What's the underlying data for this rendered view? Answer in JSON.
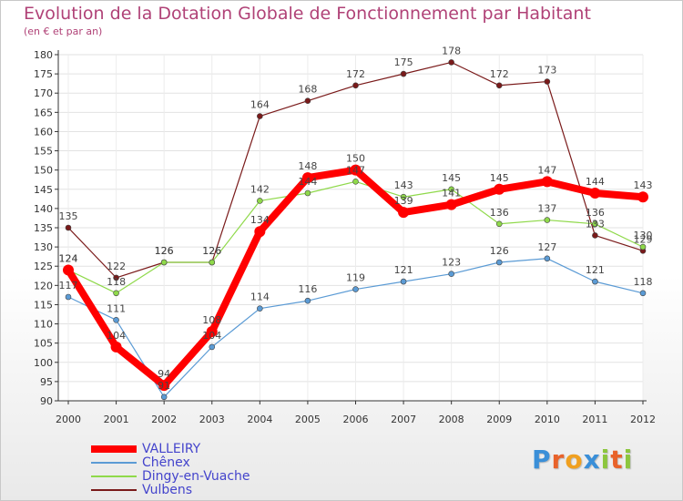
{
  "chart_data": {
    "type": "line",
    "title": "Evolution de la Dotation Globale de Fonctionnement par Habitant",
    "subtitle": "(en € et par an)",
    "x": [
      "2000",
      "2001",
      "2002",
      "2003",
      "2004",
      "2005",
      "2006",
      "2007",
      "2008",
      "2009",
      "2010",
      "2011",
      "2012"
    ],
    "ylim": [
      90,
      180
    ],
    "yticks": [
      90,
      95,
      100,
      105,
      110,
      115,
      120,
      125,
      130,
      135,
      140,
      145,
      150,
      155,
      160,
      165,
      170,
      175,
      180
    ],
    "grid": true,
    "legend_position": "bottom-left",
    "series": [
      {
        "name": "VALLEIRY",
        "color": "#ff0000",
        "values": [
          124,
          104,
          94,
          108,
          134,
          148,
          150,
          139,
          141,
          145,
          147,
          144,
          143
        ]
      },
      {
        "name": "Chênex",
        "color": "#5b9bd5",
        "values": [
          117,
          111,
          91,
          104,
          114,
          116,
          119,
          121,
          123,
          126,
          127,
          121,
          118
        ]
      },
      {
        "name": "Dingy-en-Vuache",
        "color": "#8fd94a",
        "values": [
          124,
          118,
          126,
          126,
          142,
          144,
          147,
          143,
          145,
          136,
          137,
          136,
          130
        ]
      },
      {
        "name": "Vulbens",
        "color": "#7a1a1a",
        "values": [
          135,
          122,
          126,
          126,
          164,
          168,
          172,
          175,
          178,
          172,
          173,
          133,
          129
        ]
      }
    ]
  },
  "logo": {
    "letters": [
      "P",
      "r",
      "o",
      "x",
      "i",
      "t",
      "i"
    ],
    "colors": [
      "#3a8fd8",
      "#e8622a",
      "#f0a020",
      "#3a8fd8",
      "#8cc63e",
      "#e8622a",
      "#8cc63e"
    ]
  }
}
